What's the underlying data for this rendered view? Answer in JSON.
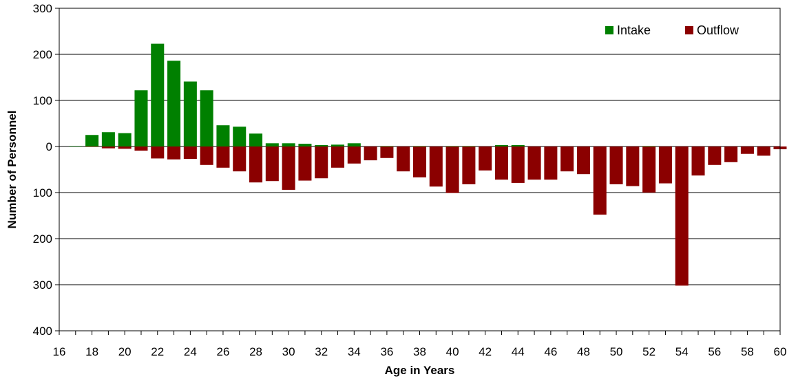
{
  "chart_data": {
    "type": "bar",
    "xlabel": "Age in Years",
    "ylabel": "Number of Personnel",
    "x": [
      17,
      18,
      19,
      20,
      21,
      22,
      23,
      24,
      25,
      26,
      27,
      28,
      29,
      30,
      31,
      32,
      33,
      34,
      35,
      36,
      37,
      38,
      39,
      40,
      41,
      42,
      43,
      44,
      45,
      46,
      47,
      48,
      49,
      50,
      51,
      52,
      53,
      54,
      55,
      56,
      57,
      58,
      59,
      60
    ],
    "xlim": [
      16,
      60
    ],
    "x_ticks": [
      "16",
      "18",
      "20",
      "22",
      "24",
      "26",
      "28",
      "30",
      "32",
      "34",
      "36",
      "38",
      "40",
      "42",
      "44",
      "46",
      "48",
      "50",
      "52",
      "54",
      "56",
      "58",
      "60"
    ],
    "ylim": [
      -400,
      300
    ],
    "y_ticks": [
      {
        "value": 300,
        "label": "300"
      },
      {
        "value": 200,
        "label": "200"
      },
      {
        "value": 100,
        "label": "100"
      },
      {
        "value": 0,
        "label": "0"
      },
      {
        "value": -100,
        "label": "100"
      },
      {
        "value": -200,
        "label": "200"
      },
      {
        "value": -300,
        "label": "300"
      },
      {
        "value": -400,
        "label": "400"
      }
    ],
    "grid": true,
    "legend_position": "top-right",
    "series": [
      {
        "name": "Intake",
        "color": "#008000",
        "values": [
          1,
          25,
          31,
          29,
          122,
          223,
          186,
          141,
          122,
          46,
          43,
          28,
          7,
          7,
          6,
          3,
          4,
          7,
          0,
          1,
          0,
          1,
          0,
          1,
          1,
          0,
          3,
          3,
          0,
          0,
          0,
          0,
          0,
          0,
          0,
          1,
          0,
          0,
          0,
          0,
          0,
          0,
          0,
          0
        ]
      },
      {
        "name": "Outflow",
        "color": "#8B0000",
        "values": [
          0,
          -1,
          -4,
          -5,
          -9,
          -26,
          -28,
          -27,
          -40,
          -46,
          -54,
          -78,
          -75,
          -94,
          -74,
          -69,
          -46,
          -37,
          -30,
          -25,
          -54,
          -67,
          -87,
          -101,
          -82,
          -52,
          -72,
          -79,
          -72,
          -72,
          -54,
          -60,
          -148,
          -82,
          -86,
          -100,
          -80,
          -302,
          -63,
          -40,
          -34,
          -16,
          -20,
          -6
        ]
      }
    ]
  }
}
